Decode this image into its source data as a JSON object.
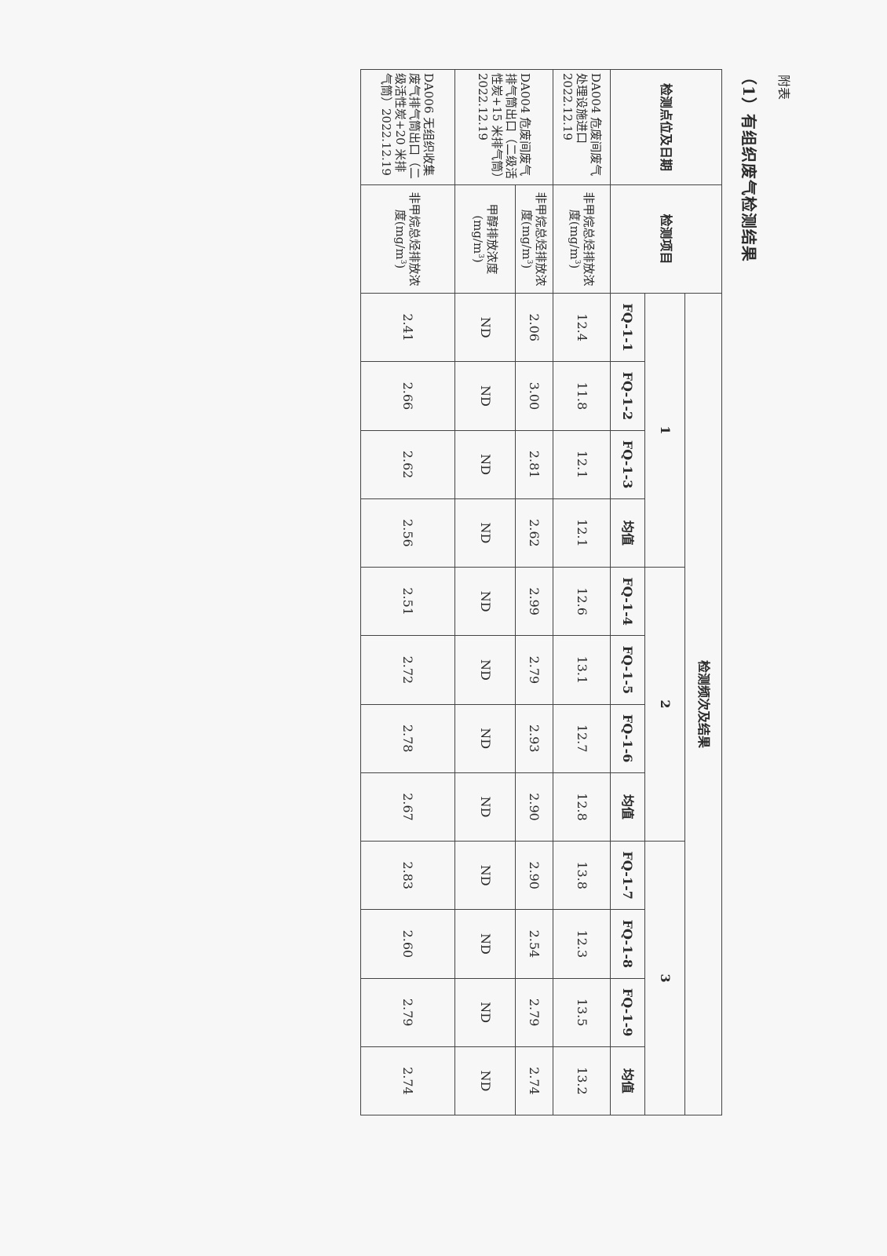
{
  "appendix_label": "附表",
  "title": "（1）有组织废气检测结果",
  "header": {
    "location": "检测点位及日期",
    "item": "检测项目",
    "results": "检测频次及结果",
    "groups": [
      "1",
      "2",
      "3"
    ],
    "columns": [
      "FQ-1-1",
      "FQ-1-2",
      "FQ-1-3",
      "均值",
      "FQ-1-4",
      "FQ-1-5",
      "FQ-1-6",
      "均值",
      "FQ-1-7",
      "FQ-1-8",
      "FQ-1-9",
      "均值"
    ]
  },
  "rows": [
    {
      "location": "DA004 危废间废气处理设施进口 2022.12.19",
      "item": "非甲烷总烃排放浓度(mg/m",
      "unit_sup": "3",
      "unit_end": ")",
      "values": [
        "12.4",
        "11.8",
        "12.1",
        "12.1",
        "12.6",
        "13.1",
        "12.7",
        "12.8",
        "13.8",
        "12.3",
        "13.5",
        "13.2"
      ]
    },
    {
      "location": "DA004 危废间废气排气筒出口（二级活性炭+15 米排气筒）2022.12.19",
      "item": "非甲烷总烃排放浓度(mg/m",
      "unit_sup": "3",
      "unit_end": ")",
      "values": [
        "2.06",
        "3.00",
        "2.81",
        "2.62",
        "2.99",
        "2.79",
        "2.93",
        "2.90",
        "2.90",
        "2.54",
        "2.79",
        "2.74"
      ]
    },
    {
      "location": "",
      "item": "甲醇排放浓度(mg/m",
      "unit_sup": "3",
      "unit_end": ")",
      "values": [
        "ND",
        "ND",
        "ND",
        "ND",
        "ND",
        "ND",
        "ND",
        "ND",
        "ND",
        "ND",
        "ND",
        "ND"
      ]
    },
    {
      "location": "DA006 无组织收集废气排气筒出口（二级活性炭+20 米排气筒）2022.12.19",
      "item": "非甲烷总烃排放浓度(mg/m",
      "unit_sup": "3",
      "unit_end": ")",
      "values": [
        "2.41",
        "2.66",
        "2.62",
        "2.56",
        "2.51",
        "2.72",
        "2.78",
        "2.67",
        "2.83",
        "2.60",
        "2.79",
        "2.74"
      ]
    }
  ]
}
